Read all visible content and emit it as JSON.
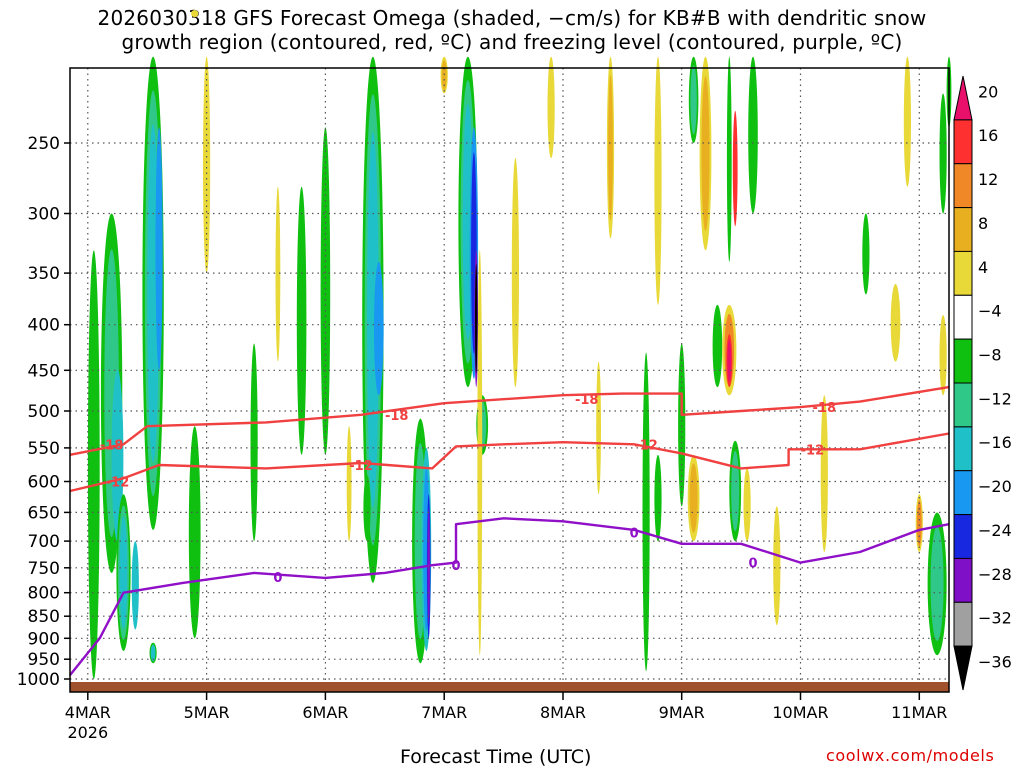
{
  "title_line1": "2026030318 GFS Forecast Omega (shaded, −cm/s) for KB#B with dendritic snow",
  "title_line2": "growth region (contoured, red, ºC) and freezing level (contoured, purple, ºC)",
  "xaxis_title": "Forecast Time (UTC)",
  "credit": "coolwx.com/models",
  "chart_data": {
    "type": "heatmap",
    "x": {
      "tick_labels": [
        "4MAR",
        "5MAR",
        "6MAR",
        "7MAR",
        "8MAR",
        "9MAR",
        "10MAR",
        "11MAR"
      ],
      "year_label": "2026",
      "range_days": [
        -0.15,
        7.25
      ]
    },
    "y": {
      "tick_labels": [
        "250",
        "300",
        "350",
        "400",
        "450",
        "500",
        "550",
        "600",
        "650",
        "700",
        "750",
        "800",
        "850",
        "900",
        "950",
        "1000"
      ],
      "ticks": [
        250,
        300,
        350,
        400,
        450,
        500,
        550,
        600,
        650,
        700,
        750,
        800,
        850,
        900,
        950,
        1000
      ],
      "range_hpa": [
        200,
        1000
      ],
      "scale": "pressure (log-like)",
      "grid": "dotted"
    },
    "colorbar": {
      "labels": [
        "20",
        "16",
        "12",
        "8",
        "4",
        "−4",
        "−8",
        "−12",
        "−16",
        "−20",
        "−24",
        "−28",
        "−32",
        "−36"
      ],
      "colors": [
        "#e8106b",
        "#ff3030",
        "#f08828",
        "#e8b020",
        "#e8d838",
        "#ffffff",
        "#10c010",
        "#30c888",
        "#20c0c8",
        "#1898f0",
        "#1828e0",
        "#8010c8",
        "#a0a0a0",
        "#000000"
      ]
    },
    "contours": [
      {
        "name": "-18",
        "color": "#f04040",
        "points": [
          [
            -0.15,
            560
          ],
          [
            0.3,
            545
          ],
          [
            0.5,
            520
          ],
          [
            1.5,
            515
          ],
          [
            2.3,
            505
          ],
          [
            3.0,
            490
          ],
          [
            4.0,
            480
          ],
          [
            4.5,
            478
          ],
          [
            5.0,
            478
          ],
          [
            5.0,
            505
          ],
          [
            5.5,
            500
          ],
          [
            6.0,
            495
          ],
          [
            6.5,
            488
          ],
          [
            7.25,
            470
          ]
        ],
        "labels": [
          {
            "text": "-18",
            "x": 0.2,
            "y": 545
          },
          {
            "text": "-18",
            "x": 2.6,
            "y": 505
          },
          {
            "text": "-18",
            "x": 4.2,
            "y": 485
          },
          {
            "text": "-18",
            "x": 6.2,
            "y": 495
          }
        ]
      },
      {
        "name": "-12",
        "color": "#f04040",
        "points": [
          [
            -0.15,
            615
          ],
          [
            0.3,
            595
          ],
          [
            0.6,
            575
          ],
          [
            1.5,
            580
          ],
          [
            2.3,
            572
          ],
          [
            2.9,
            580
          ],
          [
            3.1,
            548
          ],
          [
            3.5,
            545
          ],
          [
            4.0,
            542
          ],
          [
            4.6,
            545
          ],
          [
            5.0,
            558
          ],
          [
            5.5,
            580
          ],
          [
            5.9,
            575
          ],
          [
            5.9,
            552
          ],
          [
            6.5,
            552
          ],
          [
            7.25,
            530
          ]
        ],
        "labels": [
          {
            "text": "-12",
            "x": 0.25,
            "y": 600
          },
          {
            "text": "-12",
            "x": 2.3,
            "y": 575
          },
          {
            "text": "-12",
            "x": 4.7,
            "y": 545
          },
          {
            "text": "-12",
            "x": 6.1,
            "y": 552
          }
        ]
      },
      {
        "name": "0",
        "color": "#9010c8",
        "points": [
          [
            -0.15,
            990
          ],
          [
            0.1,
            900
          ],
          [
            0.3,
            800
          ],
          [
            0.8,
            780
          ],
          [
            1.4,
            760
          ],
          [
            2.0,
            770
          ],
          [
            2.5,
            760
          ],
          [
            2.9,
            745
          ],
          [
            3.1,
            740
          ],
          [
            3.1,
            670
          ],
          [
            3.5,
            660
          ],
          [
            4.0,
            665
          ],
          [
            4.6,
            680
          ],
          [
            5.0,
            705
          ],
          [
            5.5,
            705
          ],
          [
            6.0,
            740
          ],
          [
            6.5,
            720
          ],
          [
            7.0,
            680
          ],
          [
            7.25,
            670
          ]
        ],
        "labels": [
          {
            "text": "0",
            "x": 1.6,
            "y": 768
          },
          {
            "text": "0",
            "x": 3.1,
            "y": 745
          },
          {
            "text": "0",
            "x": 4.6,
            "y": 685
          },
          {
            "text": "0",
            "x": 5.6,
            "y": 740
          }
        ]
      }
    ]
  }
}
